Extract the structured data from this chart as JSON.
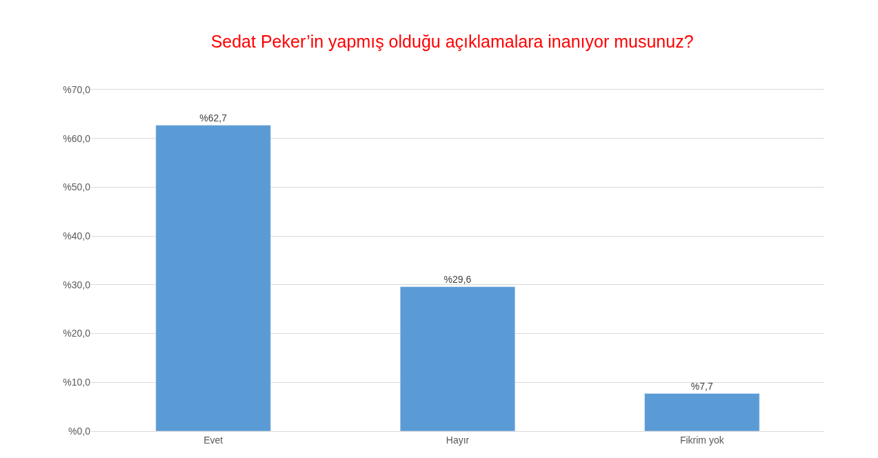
{
  "chart_data": {
    "type": "bar",
    "title": "Sedat Peker’in yapmış olduğu açıklamalara inanıyor musunuz?",
    "categories": [
      "Evet",
      "Hayır",
      "Fikrim yok"
    ],
    "values": [
      62.7,
      29.6,
      7.7
    ],
    "value_labels": [
      "%62,7",
      "%29,6",
      "%7,7"
    ],
    "color": "#5b9bd5",
    "ylim": [
      0,
      70
    ],
    "yticks": [
      {
        "value": 0,
        "label": "%0,0"
      },
      {
        "value": 10,
        "label": "%10,0"
      },
      {
        "value": 20,
        "label": "%20,0"
      },
      {
        "value": 30,
        "label": "%30,0"
      },
      {
        "value": 40,
        "label": "%40,0"
      },
      {
        "value": 50,
        "label": "%50,0"
      },
      {
        "value": 60,
        "label": "%60,0"
      },
      {
        "value": 70,
        "label": "%70,0"
      }
    ],
    "grid": "y"
  }
}
